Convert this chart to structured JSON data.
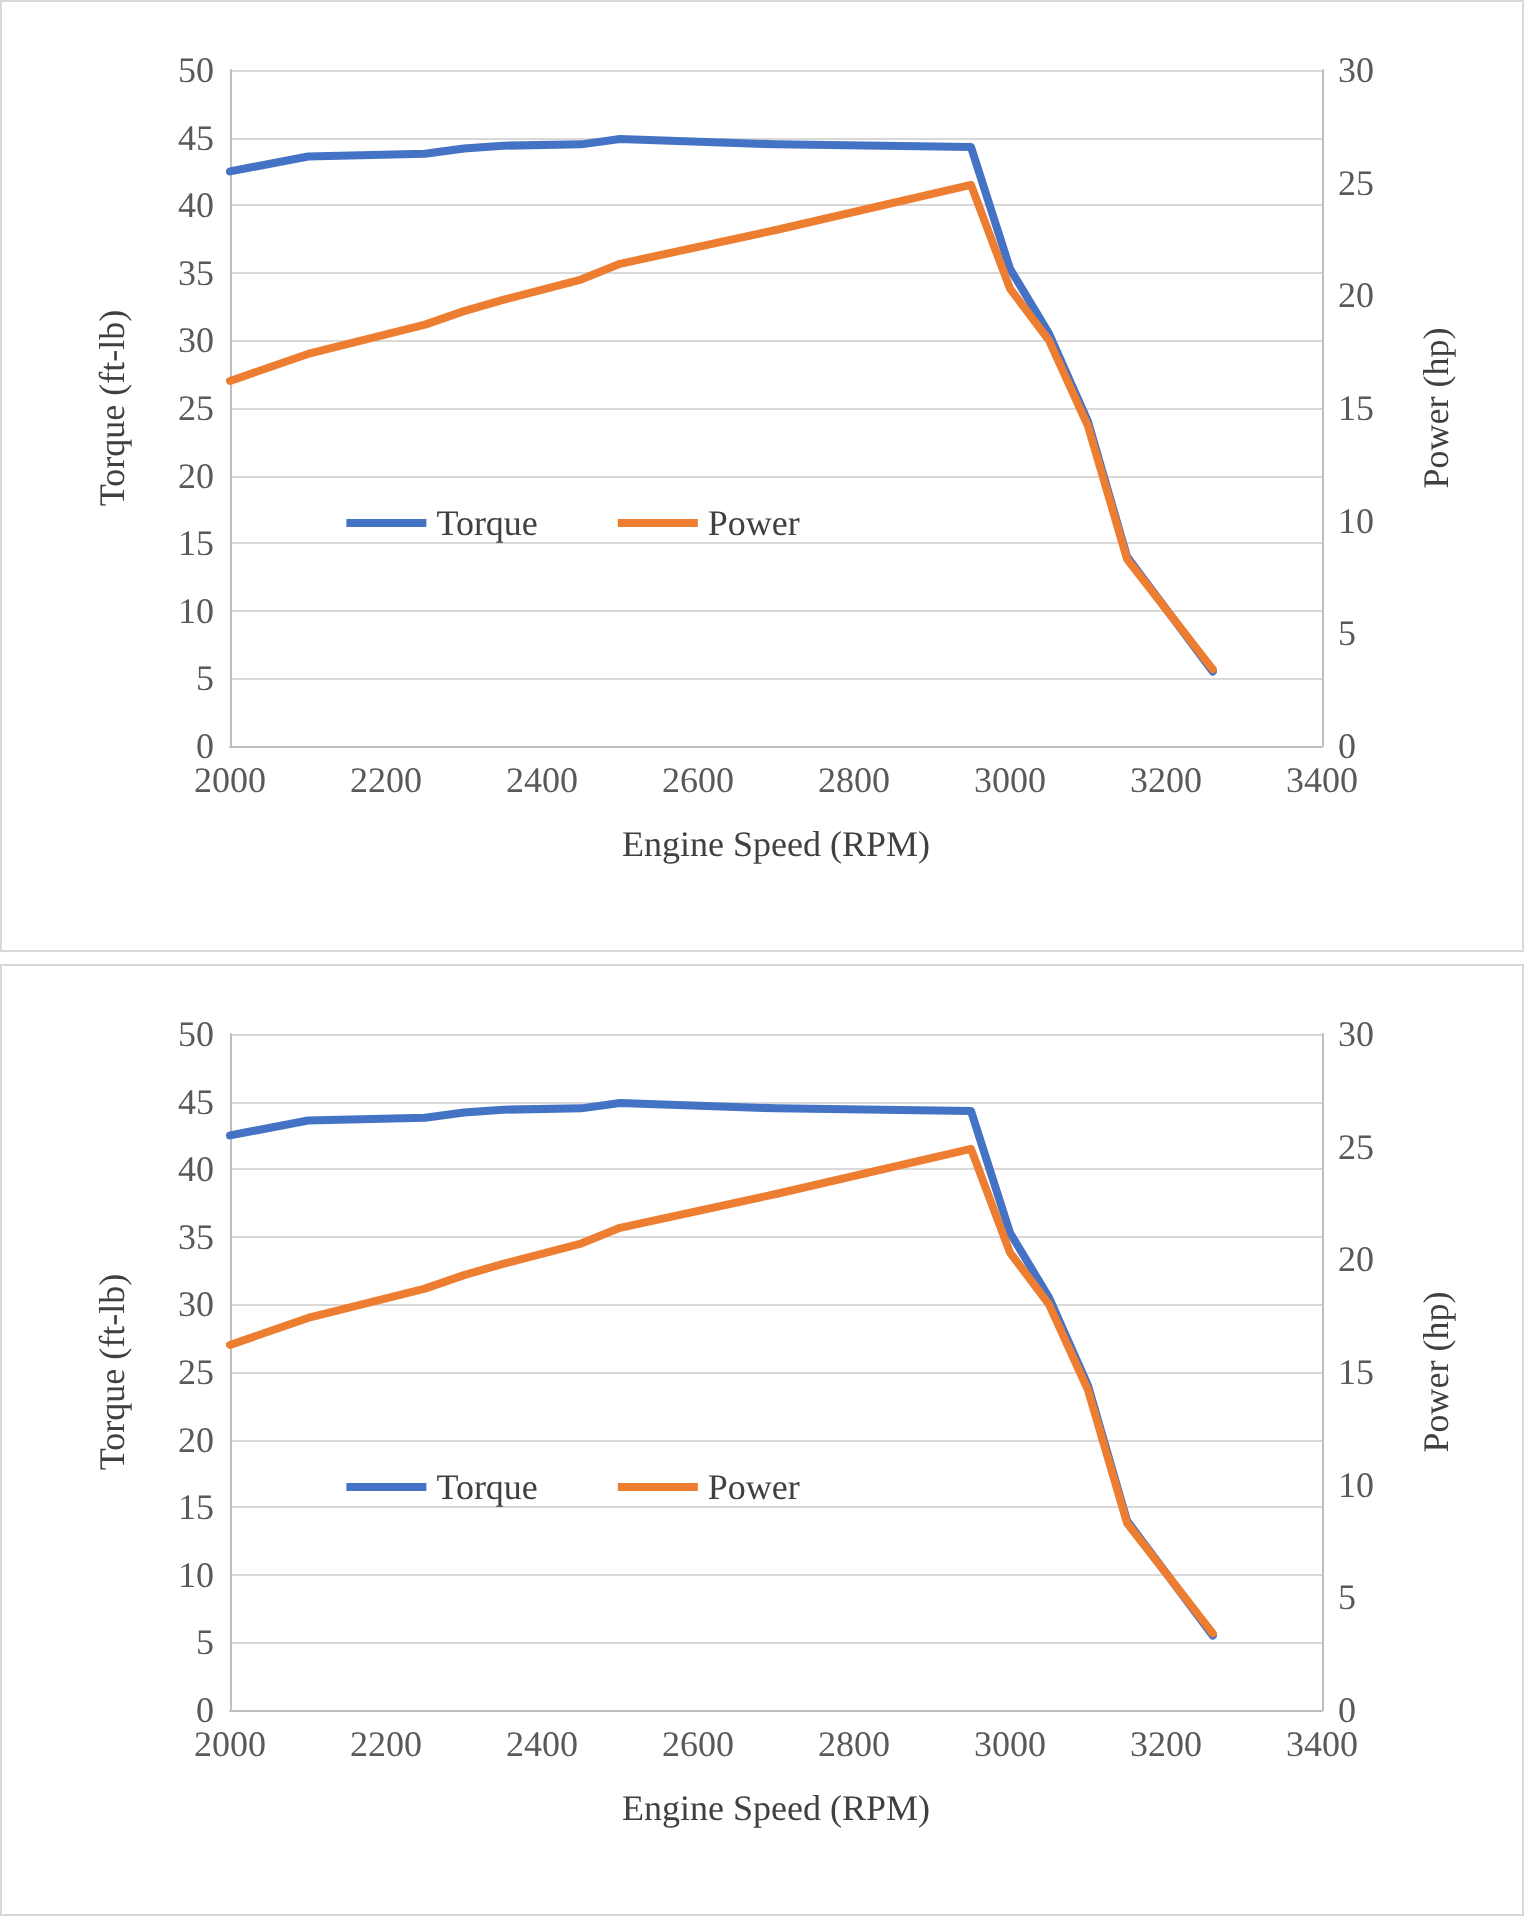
{
  "chart_data": [
    {
      "type": "line",
      "xlabel": "Engine Speed (RPM)",
      "ylabel": "Torque (ft-lb)",
      "y2label": "Power (hp)",
      "x": [
        2000,
        2100,
        2250,
        2300,
        2350,
        2450,
        2500,
        2700,
        2950,
        3000,
        3050,
        3100,
        3150,
        3260
      ],
      "series": [
        {
          "name": "Torque",
          "color": "#4472c4",
          "values": [
            42.5,
            43.6,
            43.8,
            44.2,
            44.4,
            44.5,
            44.9,
            44.5,
            44.3,
            35.3,
            30.5,
            24,
            14,
            5.5
          ]
        },
        {
          "name": "Power",
          "color": "#ed7d31",
          "axis": "y2",
          "values": [
            16.2,
            17.4,
            18.7,
            19.3,
            19.8,
            20.7,
            21.4,
            22.9,
            24.9,
            20.3,
            18,
            14.2,
            8.3,
            3.4
          ]
        }
      ],
      "xlim": [
        2000,
        3400
      ],
      "xticks": [
        2000,
        2200,
        2400,
        2600,
        2800,
        3000,
        3200,
        3400
      ],
      "ylim": [
        0,
        50
      ],
      "yticks": [
        0,
        5,
        10,
        15,
        20,
        25,
        30,
        35,
        40,
        45,
        50
      ],
      "y2lim": [
        0,
        30
      ],
      "y2ticks": [
        0,
        5,
        10,
        15,
        20,
        25,
        30
      ],
      "grid": "y",
      "legend": "center",
      "marker": "none",
      "line_style": "solid"
    },
    {
      "type": "line",
      "xlabel": "Engine Speed (RPM)",
      "ylabel": "Torque (ft-lb)",
      "y2label": "Power (hp)",
      "x": [
        2000,
        2100,
        2250,
        2300,
        2350,
        2450,
        2500,
        2700,
        2950,
        3000,
        3050,
        3100,
        3150,
        3260
      ],
      "series": [
        {
          "name": "Torque",
          "color": "#4472c4",
          "values": [
            42.5,
            43.6,
            43.8,
            44.2,
            44.4,
            44.5,
            44.9,
            44.5,
            44.3,
            35.3,
            30.5,
            24,
            14,
            5.5
          ]
        },
        {
          "name": "Power",
          "color": "#ed7d31",
          "axis": "y2",
          "values": [
            16.2,
            17.4,
            18.7,
            19.3,
            19.8,
            20.7,
            21.4,
            22.9,
            24.9,
            20.3,
            18,
            14.2,
            8.3,
            3.4
          ]
        }
      ],
      "xlim": [
        2000,
        3400
      ],
      "xticks": [
        2000,
        2200,
        2400,
        2600,
        2800,
        3000,
        3200,
        3400
      ],
      "ylim": [
        0,
        50
      ],
      "yticks": [
        0,
        5,
        10,
        15,
        20,
        25,
        30,
        35,
        40,
        45,
        50
      ],
      "y2lim": [
        0,
        30
      ],
      "y2ticks": [
        0,
        5,
        10,
        15,
        20,
        25,
        30
      ],
      "grid": "y",
      "legend": "center",
      "marker": "none",
      "line_style": "solid"
    }
  ]
}
